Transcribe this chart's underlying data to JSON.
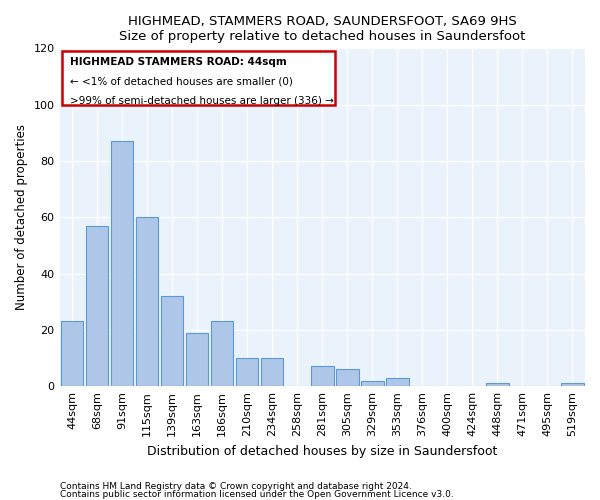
{
  "title": "HIGHMEAD, STAMMERS ROAD, SAUNDERSFOOT, SA69 9HS",
  "subtitle": "Size of property relative to detached houses in Saundersfoot",
  "xlabel": "Distribution of detached houses by size in Saundersfoot",
  "ylabel": "Number of detached properties",
  "footnote1": "Contains HM Land Registry data © Crown copyright and database right 2024.",
  "footnote2": "Contains public sector information licensed under the Open Government Licence v3.0.",
  "categories": [
    "44sqm",
    "68sqm",
    "91sqm",
    "115sqm",
    "139sqm",
    "163sqm",
    "186sqm",
    "210sqm",
    "234sqm",
    "258sqm",
    "281sqm",
    "305sqm",
    "329sqm",
    "353sqm",
    "376sqm",
    "400sqm",
    "424sqm",
    "448sqm",
    "471sqm",
    "495sqm",
    "519sqm"
  ],
  "values": [
    23,
    57,
    87,
    60,
    32,
    19,
    23,
    10,
    10,
    0,
    7,
    6,
    2,
    3,
    0,
    0,
    0,
    1,
    0,
    0,
    1
  ],
  "bar_color": "#aec6e8",
  "bar_edge_color": "#5b9bd5",
  "background_color": "#eaf2fb",
  "annotation_box_edge": "#cc0000",
  "annotation_text_line1": "HIGHMEAD STAMMERS ROAD: 44sqm",
  "annotation_text_line2": "← <1% of detached houses are smaller (0)",
  "annotation_text_line3": ">99% of semi-detached houses are larger (336) →",
  "ylim": [
    0,
    120
  ],
  "yticks": [
    0,
    20,
    40,
    60,
    80,
    100,
    120
  ]
}
